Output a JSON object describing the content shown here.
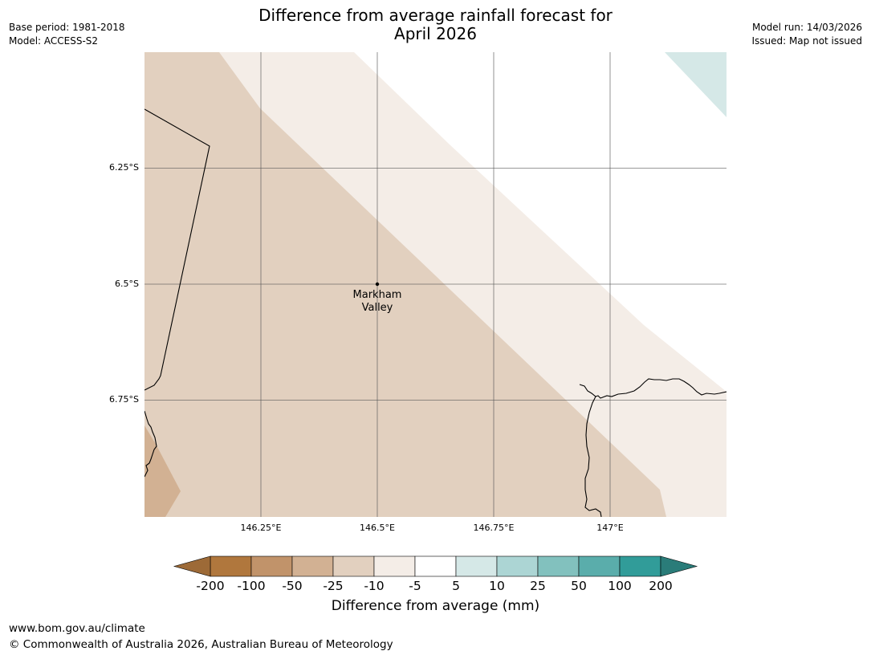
{
  "header": {
    "title_line1": "Difference from average rainfall forecast for",
    "title_line2": "April 2026",
    "base_period": "Base period: 1981-2018",
    "model": "Model: ACCESS-S2",
    "model_run": "Model run: 14/03/2026",
    "issued": "Issued: Map not issued"
  },
  "map": {
    "lat_labels": [
      "6.25°S",
      "6.5°S",
      "6.75°S"
    ],
    "lon_labels": [
      "146.25°E",
      "146.5°E",
      "146.75°E",
      "147°E"
    ],
    "location": {
      "name_line1": "Markham",
      "name_line2": "Valley",
      "lat": -6.5,
      "lon": 146.5
    },
    "zone_colors": {
      "minus_100_to_minus_50": "#d2b193",
      "minus_25_to_minus_10": "#e2d0bf",
      "minus_10_to_minus_5": "#f4ede7",
      "minus_5_to_5": "#ffffff",
      "5_to_10": "#d5e8e7"
    }
  },
  "colorbar": {
    "title": "Difference from average (mm)",
    "tick_labels": [
      "-200",
      "-100",
      "-50",
      "-25",
      "-10",
      "-5",
      "5",
      "10",
      "25",
      "50",
      "100",
      "200"
    ],
    "under_color": "#9d6a37",
    "over_color": "#2a7c79",
    "colors": [
      "#b0773d",
      "#c1936a",
      "#d2b193",
      "#e2d0bf",
      "#f4ede7",
      "#ffffff",
      "#d5e8e7",
      "#acd5d4",
      "#82c1be",
      "#5aadab",
      "#319c99"
    ]
  },
  "footer": {
    "url": "www.bom.gov.au/climate",
    "copyright": "© Commonwealth of Australia 2026, Australian Bureau of Meteorology"
  }
}
